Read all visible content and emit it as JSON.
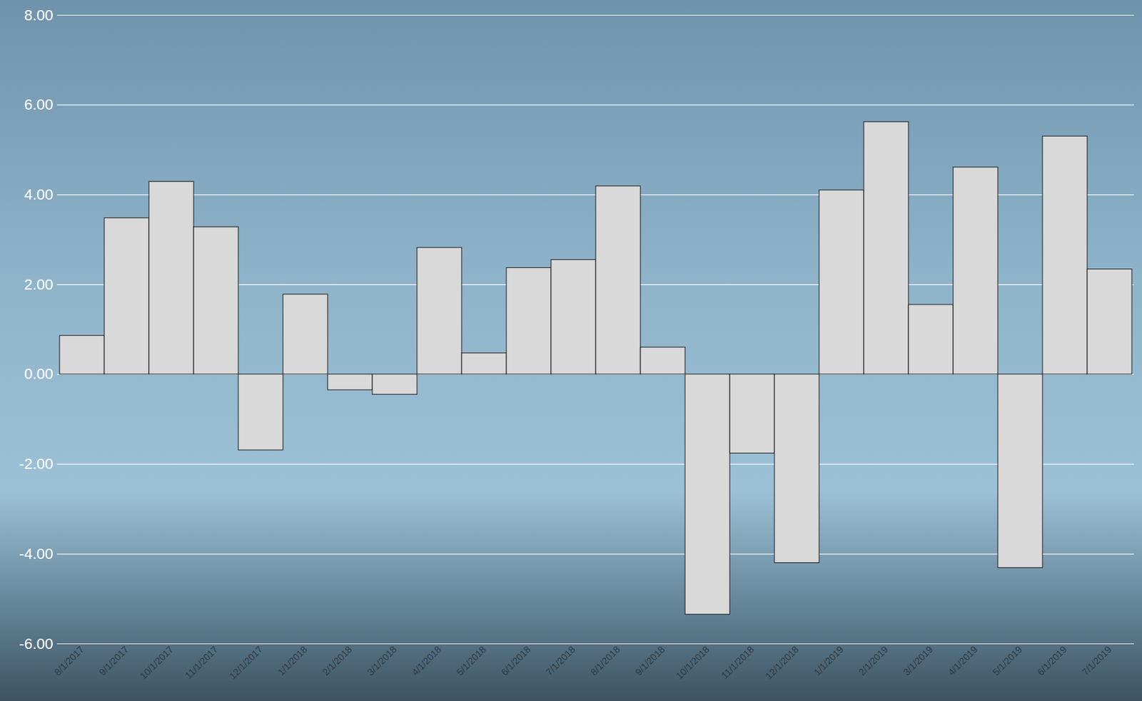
{
  "chart_data": {
    "type": "bar",
    "categories": [
      "8/1/2017",
      "9/1/2017",
      "10/1/2017",
      "11/1/2017",
      "12/1/2017",
      "1/1/2018",
      "2/1/2018",
      "3/1/2018",
      "4/1/2018",
      "5/1/2018",
      "6/1/2018",
      "7/1/2018",
      "8/1/2018",
      "9/1/2018",
      "10/1/2018",
      "11/1/2018",
      "12/1/2018",
      "1/1/2019",
      "2/1/2019",
      "3/1/2019",
      "4/1/2019",
      "5/1/2019",
      "6/1/2019",
      "7/1/2019"
    ],
    "values": [
      0.86,
      3.48,
      4.29,
      3.28,
      -1.69,
      1.78,
      -0.35,
      -0.45,
      2.82,
      0.47,
      2.37,
      2.55,
      4.19,
      0.6,
      -5.35,
      -1.76,
      -4.2,
      4.1,
      5.62,
      1.55,
      4.61,
      -4.31,
      5.3,
      2.34
    ],
    "color": "#d9d9d9",
    "ylim": [
      -6,
      8
    ],
    "yticks": [
      {
        "value": -6,
        "label": "-6.00"
      },
      {
        "value": -4,
        "label": "-4.00"
      },
      {
        "value": -2,
        "label": "-2.00"
      },
      {
        "value": 0,
        "label": "0.00"
      },
      {
        "value": 2,
        "label": "2.00"
      },
      {
        "value": 4,
        "label": "4.00"
      },
      {
        "value": 6,
        "label": "6.00"
      },
      {
        "value": 8,
        "label": "8.00"
      }
    ],
    "grid": true
  }
}
